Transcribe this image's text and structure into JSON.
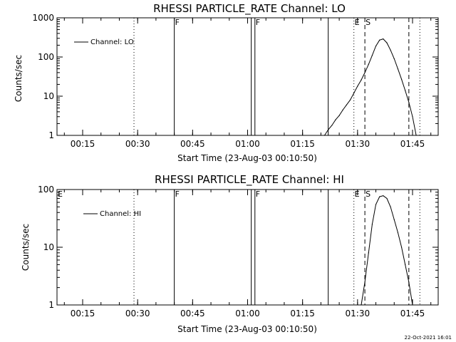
{
  "footer": {
    "timestamp": "22-Oct-2021 16:01"
  },
  "chart_data": [
    {
      "type": "line",
      "title": "RHESSI PARTICLE_RATE Channel: LO",
      "xlabel": "Start Time (23-Aug-03 00:10:50)",
      "ylabel": "Counts/sec",
      "y_scale": "log",
      "ylim": [
        1,
        1000
      ],
      "xlim": [
        "00:08",
        "01:52"
      ],
      "x_ticks": [
        "00:15",
        "00:30",
        "00:45",
        "01:00",
        "01:15",
        "01:30",
        "01:45"
      ],
      "y_ticks": [
        "1",
        "10",
        "100",
        "1000"
      ],
      "legend": {
        "position": "top-left",
        "label": "Channel: LO"
      },
      "markers": [
        {
          "label": "F",
          "time": "00:40",
          "style": "solid"
        },
        {
          "label": "F",
          "time": "01:02",
          "style": "solid"
        },
        {
          "label": "E",
          "time": "01:29",
          "style": "dotted"
        },
        {
          "label": "S",
          "time": "01:32",
          "style": "dashed"
        }
      ],
      "extra_lines": [
        {
          "time": "00:29",
          "style": "dotted"
        },
        {
          "time": "01:01",
          "style": "solid"
        },
        {
          "time": "01:22",
          "style": "solid"
        },
        {
          "time": "01:44",
          "style": "dashed"
        },
        {
          "time": "01:47",
          "style": "dotted"
        }
      ],
      "series": [
        {
          "x": [
            "01:21",
            "01:22",
            "01:23",
            "01:24",
            "01:25",
            "01:26",
            "01:27",
            "01:28",
            "01:29",
            "01:30",
            "01:31",
            "01:32",
            "01:33",
            "01:34",
            "01:35",
            "01:36",
            "01:37",
            "01:38",
            "01:39",
            "01:40",
            "01:41",
            "01:42",
            "01:43",
            "01:44",
            "01:45",
            "01:46"
          ],
          "y": [
            1,
            1.4,
            1.8,
            2.5,
            3.2,
            4.5,
            6,
            8,
            12,
            18,
            26,
            40,
            65,
            110,
            190,
            270,
            290,
            230,
            150,
            90,
            50,
            27,
            14,
            7,
            3,
            1
          ]
        }
      ]
    },
    {
      "type": "line",
      "title": "RHESSI PARTICLE_RATE Channel: HI",
      "xlabel": "Start Time (23-Aug-03 00:10:50)",
      "ylabel": "Counts/sec",
      "y_scale": "log",
      "ylim": [
        1,
        100
      ],
      "xlim": [
        "00:08",
        "01:52"
      ],
      "x_ticks": [
        "00:15",
        "00:30",
        "00:45",
        "01:00",
        "01:15",
        "01:30",
        "01:45"
      ],
      "y_ticks": [
        "1",
        "10",
        "100"
      ],
      "legend": {
        "position": "top-left",
        "label": "Channel: HI"
      },
      "markers": [
        {
          "label": "E",
          "time": "00:08",
          "style": "solid"
        },
        {
          "label": "F",
          "time": "00:40",
          "style": "solid"
        },
        {
          "label": "F",
          "time": "01:02",
          "style": "solid"
        },
        {
          "label": "E",
          "time": "01:29",
          "style": "dotted"
        },
        {
          "label": "S",
          "time": "01:32",
          "style": "dashed"
        }
      ],
      "extra_lines": [
        {
          "time": "00:29",
          "style": "dotted"
        },
        {
          "time": "01:01",
          "style": "solid"
        },
        {
          "time": "01:22",
          "style": "solid"
        },
        {
          "time": "01:44",
          "style": "dashed"
        },
        {
          "time": "01:47",
          "style": "dotted"
        }
      ],
      "series": [
        {
          "x": [
            "01:31",
            "01:32",
            "01:33",
            "01:34",
            "01:35",
            "01:36",
            "01:37",
            "01:38",
            "01:39",
            "01:40",
            "01:41",
            "01:42",
            "01:43",
            "01:44",
            "01:45"
          ],
          "y": [
            1,
            2.5,
            8,
            25,
            55,
            75,
            78,
            70,
            50,
            30,
            18,
            10,
            5,
            2.5,
            1
          ]
        }
      ]
    }
  ]
}
